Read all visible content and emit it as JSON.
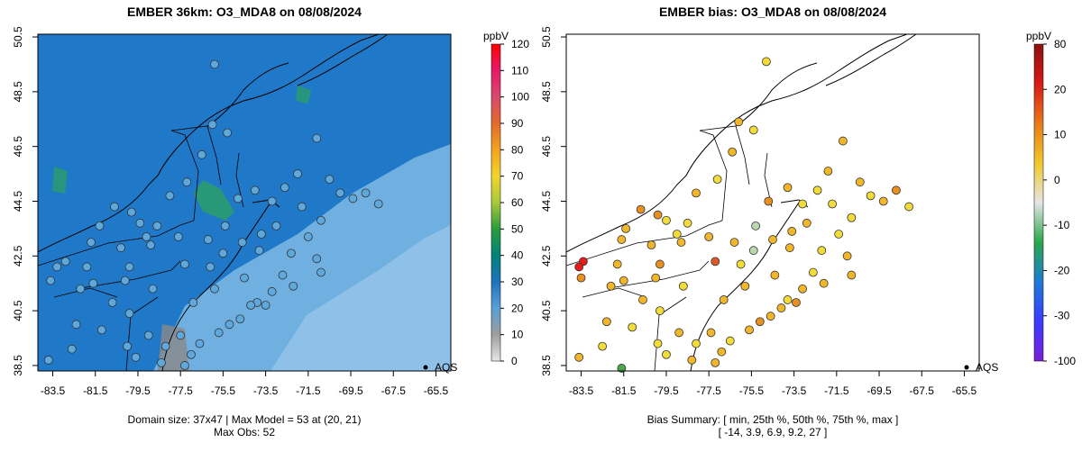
{
  "chart_data": [
    {
      "type": "heatmap",
      "title": "EMBER 36km: O3_MDA8 on 08/08/2024",
      "xlabel": "",
      "ylabel": "",
      "xlim": [
        -84.2,
        -64.8
      ],
      "ylim": [
        38.3,
        50.6
      ],
      "x_ticks": [
        "-83.5",
        "-81.5",
        "-79.5",
        "-77.5",
        "-75.5",
        "-73.5",
        "-71.5",
        "-69.5",
        "-67.5",
        "-65.5"
      ],
      "y_ticks": [
        "38.5",
        "40.5",
        "42.5",
        "44.5",
        "46.5",
        "48.5",
        "50.5"
      ],
      "colorbar": {
        "unit": "ppbV",
        "ticks": [
          "0",
          "10",
          "20",
          "30",
          "40",
          "50",
          "60",
          "70",
          "80",
          "90",
          "100",
          "110",
          "120"
        ],
        "colors": [
          "#e6e6e6",
          "#9e9e9e",
          "#5a9fd6",
          "#1e73be",
          "#00837a",
          "#2a9d3b",
          "#a8c93a",
          "#f2d42a",
          "#f2a41f",
          "#e46a2a",
          "#d94a6c",
          "#e8186a",
          "#ff0000"
        ]
      },
      "points": [
        [
          -75.9,
          49.5
        ],
        [
          -76.0,
          47.3
        ],
        [
          -75.3,
          47.0
        ],
        [
          -76.5,
          46.2
        ],
        [
          -77.2,
          45.2
        ],
        [
          -78.0,
          44.7
        ],
        [
          -79.4,
          43.7
        ],
        [
          -79.8,
          44.1
        ],
        [
          -80.6,
          44.3
        ],
        [
          -81.3,
          43.6
        ],
        [
          -82.9,
          42.3
        ],
        [
          -83.3,
          42.1
        ],
        [
          -81.7,
          43.0
        ],
        [
          -80.3,
          42.8
        ],
        [
          -79.1,
          43.2
        ],
        [
          -78.6,
          43.6
        ],
        [
          -77.6,
          43.2
        ],
        [
          -76.2,
          43.1
        ],
        [
          -75.4,
          43.6
        ],
        [
          -74.8,
          44.6
        ],
        [
          -74.0,
          44.9
        ],
        [
          -73.2,
          44.5
        ],
        [
          -72.6,
          45.0
        ],
        [
          -72.0,
          45.5
        ],
        [
          -71.1,
          46.8
        ],
        [
          -70.5,
          45.3
        ],
        [
          -70.0,
          44.8
        ],
        [
          -69.4,
          44.6
        ],
        [
          -68.8,
          44.8
        ],
        [
          -68.2,
          44.4
        ],
        [
          -71.5,
          43.2
        ],
        [
          -71.1,
          42.4
        ],
        [
          -70.9,
          41.9
        ],
        [
          -72.7,
          41.8
        ],
        [
          -73.2,
          41.2
        ],
        [
          -73.9,
          40.8
        ],
        [
          -74.2,
          40.7
        ],
        [
          -74.7,
          40.2
        ],
        [
          -75.2,
          40.0
        ],
        [
          -75.7,
          39.7
        ],
        [
          -76.6,
          39.3
        ],
        [
          -77.0,
          38.9
        ],
        [
          -77.5,
          39.6
        ],
        [
          -78.2,
          39.2
        ],
        [
          -79.0,
          39.6
        ],
        [
          -79.9,
          40.4
        ],
        [
          -80.7,
          40.8
        ],
        [
          -81.6,
          41.5
        ],
        [
          -82.2,
          41.3
        ],
        [
          -83.6,
          41.6
        ],
        [
          -82.4,
          40.0
        ],
        [
          -81.2,
          39.8
        ],
        [
          -80.0,
          39.2
        ],
        [
          -79.6,
          38.8
        ],
        [
          -78.4,
          38.6
        ],
        [
          -77.3,
          38.5
        ],
        [
          -83.7,
          38.7
        ],
        [
          -82.6,
          39.1
        ],
        [
          -74.5,
          41.7
        ],
        [
          -73.8,
          42.7
        ],
        [
          -73.7,
          43.3
        ],
        [
          -76.1,
          42.1
        ],
        [
          -77.3,
          42.2
        ],
        [
          -78.9,
          42.9
        ],
        [
          -79.9,
          42.1
        ],
        [
          -75.5,
          42.6
        ],
        [
          -74.6,
          43.0
        ],
        [
          -72.3,
          42.6
        ],
        [
          -73.0,
          43.6
        ],
        [
          -71.8,
          44.3
        ],
        [
          -70.9,
          43.8
        ],
        [
          -76.9,
          40.8
        ],
        [
          -75.9,
          41.3
        ],
        [
          -78.8,
          41.3
        ],
        [
          -80.1,
          41.6
        ],
        [
          -81.9,
          42.1
        ],
        [
          -72.2,
          41.4
        ],
        [
          -73.5,
          40.7
        ]
      ],
      "summary_line1": "Domain size: 37x47 | Max Model = 53 at (20, 21)",
      "summary_line2": "Max Obs: 52",
      "legend_label": "AQS"
    },
    {
      "type": "scatter",
      "title": "EMBER bias: O3_MDA8 on 08/08/2024",
      "xlim": [
        -84.2,
        -64.8
      ],
      "ylim": [
        38.3,
        50.6
      ],
      "x_ticks": [
        "-83.5",
        "-81.5",
        "-79.5",
        "-77.5",
        "-75.5",
        "-73.5",
        "-71.5",
        "-69.5",
        "-67.5",
        "-65.5"
      ],
      "y_ticks": [
        "38.5",
        "40.5",
        "42.5",
        "44.5",
        "46.5",
        "48.5",
        "50.5"
      ],
      "colorbar": {
        "unit": "ppbV",
        "ticks": [
          "-100",
          "-30",
          "-20",
          "-10",
          "0",
          "10",
          "20",
          "80"
        ],
        "colors": [
          "#7a1fd6",
          "#3b3bff",
          "#1e7bd6",
          "#2aa84a",
          "#e6e6e6",
          "#f0c82a",
          "#e87a1a",
          "#d81a1a",
          "#8b1010"
        ]
      },
      "points": [
        [
          -74.8,
          49.6,
          7
        ],
        [
          -76.1,
          47.4,
          9
        ],
        [
          -75.4,
          47.1,
          5
        ],
        [
          -76.4,
          46.3,
          8
        ],
        [
          -77.1,
          45.3,
          6
        ],
        [
          -78.1,
          44.8,
          10
        ],
        [
          -79.5,
          43.8,
          7
        ],
        [
          -79.9,
          44.0,
          12
        ],
        [
          -80.7,
          44.2,
          14
        ],
        [
          -81.4,
          43.5,
          9
        ],
        [
          -83.4,
          42.3,
          27
        ],
        [
          -83.6,
          42.1,
          24
        ],
        [
          -81.6,
          43.1,
          11
        ],
        [
          -80.2,
          42.9,
          8
        ],
        [
          -79.0,
          43.3,
          6
        ],
        [
          -78.5,
          43.7,
          5
        ],
        [
          -77.5,
          43.2,
          8
        ],
        [
          -76.3,
          43.0,
          10
        ],
        [
          -75.3,
          43.6,
          -4
        ],
        [
          -74.7,
          44.5,
          12
        ],
        [
          -73.8,
          45.0,
          9
        ],
        [
          -73.1,
          44.4,
          7
        ],
        [
          -72.4,
          44.9,
          3
        ],
        [
          -71.9,
          45.6,
          11
        ],
        [
          -71.2,
          46.7,
          8
        ],
        [
          -70.4,
          45.2,
          9
        ],
        [
          -69.9,
          44.7,
          6
        ],
        [
          -69.3,
          44.5,
          10
        ],
        [
          -68.7,
          44.9,
          12
        ],
        [
          -68.1,
          44.3,
          7
        ],
        [
          -71.4,
          43.3,
          4
        ],
        [
          -71.0,
          42.5,
          9
        ],
        [
          -70.8,
          41.8,
          10
        ],
        [
          -72.6,
          41.9,
          7
        ],
        [
          -73.1,
          41.3,
          8
        ],
        [
          -73.8,
          40.9,
          6
        ],
        [
          -74.1,
          40.6,
          11
        ],
        [
          -74.6,
          40.3,
          9
        ],
        [
          -75.1,
          40.1,
          12
        ],
        [
          -75.6,
          39.8,
          8
        ],
        [
          -76.5,
          39.4,
          7
        ],
        [
          -76.9,
          39.0,
          10
        ],
        [
          -77.4,
          39.7,
          9
        ],
        [
          -78.1,
          39.3,
          6
        ],
        [
          -78.9,
          39.7,
          8
        ],
        [
          -79.8,
          40.5,
          7
        ],
        [
          -80.6,
          40.9,
          9
        ],
        [
          -81.5,
          41.6,
          11
        ],
        [
          -82.1,
          41.4,
          10
        ],
        [
          -83.5,
          41.7,
          13
        ],
        [
          -82.3,
          40.1,
          8
        ],
        [
          -81.1,
          39.9,
          6
        ],
        [
          -79.9,
          39.3,
          7
        ],
        [
          -79.5,
          38.9,
          5
        ],
        [
          -78.3,
          38.7,
          9
        ],
        [
          -77.2,
          38.6,
          8
        ],
        [
          -83.6,
          38.8,
          10
        ],
        [
          -81.6,
          38.4,
          -14
        ],
        [
          -82.5,
          39.2,
          7
        ],
        [
          -74.4,
          41.8,
          9
        ],
        [
          -73.7,
          42.8,
          10
        ],
        [
          -73.6,
          43.4,
          8
        ],
        [
          -76.0,
          42.2,
          7
        ],
        [
          -77.2,
          42.3,
          20
        ],
        [
          -78.8,
          43.0,
          9
        ],
        [
          -79.8,
          42.2,
          12
        ],
        [
          -75.4,
          42.7,
          -6
        ],
        [
          -74.5,
          43.1,
          9
        ],
        [
          -72.2,
          42.7,
          7
        ],
        [
          -72.9,
          43.7,
          10
        ],
        [
          -71.7,
          44.4,
          6
        ],
        [
          -70.8,
          43.9,
          5
        ],
        [
          -76.8,
          40.9,
          9
        ],
        [
          -75.8,
          41.4,
          8
        ],
        [
          -78.7,
          41.4,
          7
        ],
        [
          -80.0,
          41.7,
          11
        ],
        [
          -81.8,
          42.2,
          10
        ],
        [
          -72.1,
          41.5,
          9
        ],
        [
          -73.4,
          40.8,
          12
        ]
      ],
      "summary_line1": "Bias Summary: [ min, 25th %, 50th %, 75th %, max ]",
      "summary_line2": "[ -14,   3.9,   6.9,   9.2,   27 ]",
      "legend_label": "AQS"
    }
  ]
}
